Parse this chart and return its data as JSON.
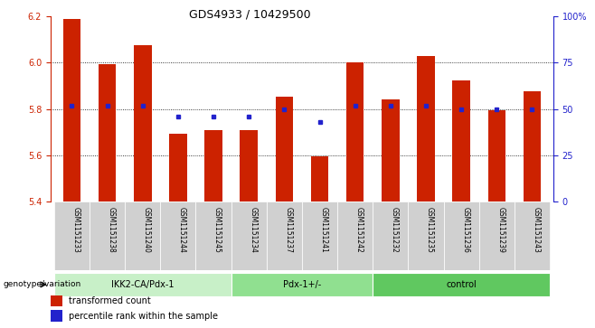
{
  "title": "GDS4933 / 10429500",
  "samples": [
    "GSM1151233",
    "GSM1151238",
    "GSM1151240",
    "GSM1151244",
    "GSM1151245",
    "GSM1151234",
    "GSM1151237",
    "GSM1151241",
    "GSM1151242",
    "GSM1151232",
    "GSM1151235",
    "GSM1151236",
    "GSM1151239",
    "GSM1151243"
  ],
  "bar_values": [
    6.19,
    5.995,
    6.075,
    5.695,
    5.71,
    5.71,
    5.855,
    5.595,
    6.0,
    5.84,
    6.03,
    5.925,
    5.795,
    5.875
  ],
  "percentile_values": [
    52,
    52,
    52,
    46,
    46,
    46,
    50,
    43,
    52,
    52,
    52,
    50,
    50,
    50
  ],
  "bar_bottom": 5.4,
  "ylim_left": [
    5.4,
    6.2
  ],
  "ylim_right": [
    0,
    100
  ],
  "yticks_left": [
    5.4,
    5.6,
    5.8,
    6.0,
    6.2
  ],
  "yticks_right": [
    0,
    25,
    50,
    75,
    100
  ],
  "yticklabels_right": [
    "0",
    "25",
    "50",
    "75",
    "100%"
  ],
  "groups": [
    {
      "label": "IKK2-CA/Pdx-1",
      "start": 0,
      "end": 5,
      "color": "#c8f0c8"
    },
    {
      "label": "Pdx-1+/-",
      "start": 5,
      "end": 9,
      "color": "#90e090"
    },
    {
      "label": "control",
      "start": 9,
      "end": 14,
      "color": "#60c860"
    }
  ],
  "bar_color": "#cc2200",
  "dot_color": "#2222cc",
  "bg_color": "#ffffff",
  "tick_area_bg": "#d0d0d0",
  "bar_width": 0.5,
  "grid_lines": [
    5.6,
    5.8,
    6.0
  ],
  "legend_items": [
    {
      "label": "transformed count",
      "color": "#cc2200"
    },
    {
      "label": "percentile rank within the sample",
      "color": "#2222cc"
    }
  ]
}
